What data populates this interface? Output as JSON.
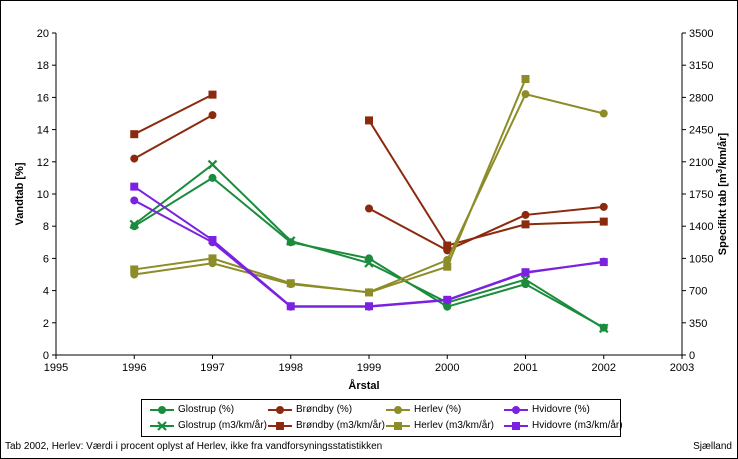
{
  "chart_data": {
    "type": "line",
    "xlabel": "Årstal",
    "ylabel_left": "Vandtab [%]",
    "ylabel_right": "Specifikt tab [m³/km/år]",
    "xlim": [
      1995,
      2003
    ],
    "xticks": [
      1995,
      1996,
      1997,
      1998,
      1999,
      2000,
      2001,
      2002,
      2003
    ],
    "ylim_left": [
      0,
      20
    ],
    "yticks_left": [
      0,
      2,
      4,
      6,
      8,
      10,
      12,
      14,
      16,
      18,
      20
    ],
    "ylim_right": [
      0,
      3500
    ],
    "yticks_right": [
      0,
      350,
      700,
      1050,
      1400,
      1750,
      2100,
      2450,
      2800,
      3150,
      3500
    ],
    "grid": false,
    "legend_position": "bottom",
    "series": [
      {
        "name": "Glostrup (%)",
        "axis": "left",
        "color": "#1a8c3c",
        "marker": "circle",
        "x": [
          1996,
          1997,
          1998,
          1999,
          2000,
          2001,
          2002
        ],
        "y": [
          8.0,
          11.0,
          7.0,
          6.0,
          3.0,
          4.4,
          1.7
        ]
      },
      {
        "name": "Glostrup (m3/km/år)",
        "axis": "right",
        "color": "#1a8c3c",
        "marker": "x",
        "x": [
          1996,
          1997,
          1998,
          1999,
          2000,
          2001,
          2002
        ],
        "y": [
          1420,
          2070,
          1240,
          1000,
          570,
          820,
          290
        ]
      },
      {
        "name": "Brøndby (%)",
        "axis": "left",
        "color": "#8b2a0e",
        "marker": "circle",
        "x": [
          1996,
          1997,
          null,
          1999,
          2000,
          2001,
          2002
        ],
        "y": [
          12.2,
          14.9,
          null,
          9.1,
          6.5,
          8.7,
          9.2
        ]
      },
      {
        "name": "Brøndby (m3/km/år)",
        "axis": "right",
        "color": "#8b2a0e",
        "marker": "square",
        "x": [
          1996,
          1997,
          null,
          1999,
          2000,
          2001,
          2002
        ],
        "y": [
          2400,
          2830,
          null,
          2550,
          1190,
          1420,
          1450
        ]
      },
      {
        "name": "Herlev (%)",
        "axis": "left",
        "color": "#8c8c28",
        "marker": "circle",
        "x": [
          1996,
          1997,
          1998,
          1999,
          2000,
          2001,
          2002
        ],
        "y": [
          5.0,
          5.7,
          4.4,
          3.9,
          5.9,
          16.2,
          15.0
        ]
      },
      {
        "name": "Herlev (m3/km/år)",
        "axis": "right",
        "color": "#8c8c28",
        "marker": "square",
        "x": [
          1996,
          1997,
          1998,
          1999,
          2000,
          2001,
          2002
        ],
        "y": [
          930,
          1050,
          780,
          680,
          960,
          3000,
          null
        ]
      },
      {
        "name": "Hvidovre (%)",
        "axis": "left",
        "color": "#7b22e0",
        "marker": "circle",
        "x": [
          1996,
          1997,
          1998,
          1999,
          2000,
          2001,
          2002
        ],
        "y": [
          9.6,
          7.0,
          3.0,
          3.0,
          3.4,
          5.1,
          5.8
        ]
      },
      {
        "name": "Hvidovre (m3/km/år)",
        "axis": "right",
        "color": "#7b22e0",
        "marker": "square",
        "x": [
          1996,
          1997,
          1998,
          1999,
          2000,
          2001,
          2002
        ],
        "y": [
          1830,
          1250,
          530,
          530,
          600,
          900,
          1010
        ]
      }
    ]
  },
  "footnote": "Tab 2002, Herlev: Værdi i procent oplyst af Herlev, ikke fra vandforsyningsstatistikken",
  "region": "Sjælland"
}
